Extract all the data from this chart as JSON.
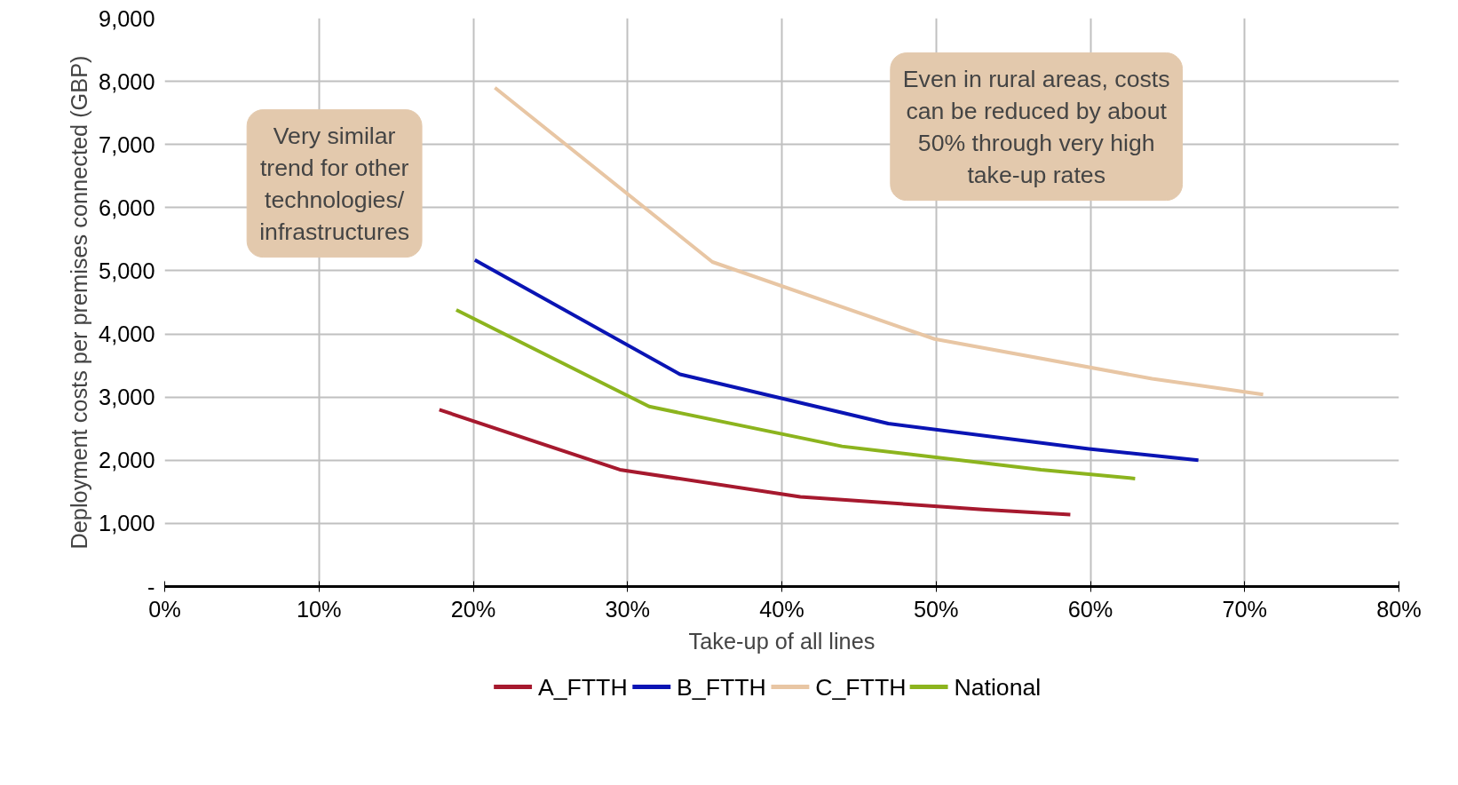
{
  "chart_data": {
    "type": "line",
    "xlabel": "Take-up of all lines",
    "ylabel": "Deployment costs per premises connected (GBP)",
    "series": [
      {
        "name": "A_FTTH",
        "color": "#a6192e",
        "x": [
          17.8,
          29.5,
          41.2,
          53,
          58.7
        ],
        "values": [
          2800,
          1850,
          1420,
          1220,
          1140
        ]
      },
      {
        "name": "B_FTTH",
        "color": "#0a14b4",
        "x": [
          20.1,
          33.4,
          46.9,
          59.9,
          67
        ],
        "values": [
          5170,
          3360,
          2580,
          2180,
          2000
        ]
      },
      {
        "name": "C_FTTH",
        "color": "#e8c6a4",
        "x": [
          21.4,
          35.5,
          49.9,
          64,
          71.2
        ],
        "values": [
          7900,
          5140,
          3920,
          3290,
          3040
        ]
      },
      {
        "name": "National",
        "color": "#8cb41e",
        "x": [
          18.9,
          31.4,
          43.9,
          56.8,
          62.9
        ],
        "values": [
          4380,
          2850,
          2220,
          1850,
          1710
        ]
      }
    ],
    "xlim": [
      0,
      80
    ],
    "ylim": [
      0,
      9000
    ],
    "xticks": [
      {
        "value": 0,
        "label": "0%"
      },
      {
        "value": 10,
        "label": "10%"
      },
      {
        "value": 20,
        "label": "20%"
      },
      {
        "value": 30,
        "label": "30%"
      },
      {
        "value": 40,
        "label": "40%"
      },
      {
        "value": 50,
        "label": "50%"
      },
      {
        "value": 60,
        "label": "60%"
      },
      {
        "value": 70,
        "label": "70%"
      },
      {
        "value": 80,
        "label": "80%"
      }
    ],
    "yticks": [
      {
        "value": 0,
        "label": "-"
      },
      {
        "value": 1000,
        "label": "1,000"
      },
      {
        "value": 2000,
        "label": "2,000"
      },
      {
        "value": 3000,
        "label": "3,000"
      },
      {
        "value": 4000,
        "label": "4,000"
      },
      {
        "value": 5000,
        "label": "5,000"
      },
      {
        "value": 6000,
        "label": "6,000"
      },
      {
        "value": 7000,
        "label": "7,000"
      },
      {
        "value": 8000,
        "label": "8,000"
      },
      {
        "value": 9000,
        "label": "9,000"
      }
    ],
    "grid": true,
    "legend": "bottom",
    "marker": "none",
    "line_style": "solid",
    "annotations": [
      "Very similar\ntrend for other\ntechnologies/\ninfrastructures",
      "Even in rural areas, costs\ncan be reduced by about\n50% through very high\ntake-up rates"
    ]
  }
}
